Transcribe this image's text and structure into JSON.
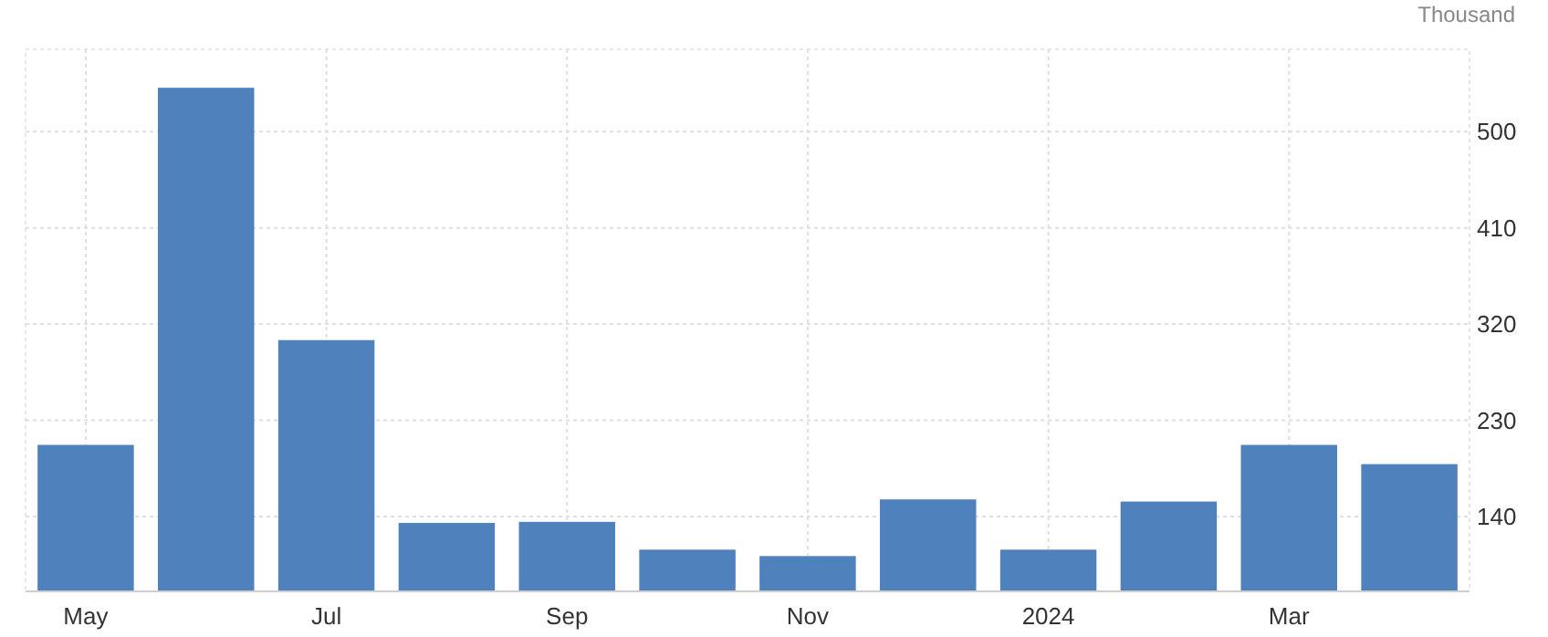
{
  "chart_data": {
    "type": "bar",
    "ylabel": "Thousand",
    "categories": [
      "May",
      null,
      "Jul",
      null,
      "Sep",
      null,
      "Nov",
      null,
      "2024",
      null,
      "Mar",
      null
    ],
    "values": [
      207,
      541,
      305,
      134,
      135,
      109,
      103,
      156,
      109,
      154,
      207,
      189
    ],
    "color": "#4f81bd",
    "ylim": [
      70,
      577
    ],
    "yticks": [
      140,
      230,
      320,
      410,
      500
    ],
    "grid": true
  }
}
